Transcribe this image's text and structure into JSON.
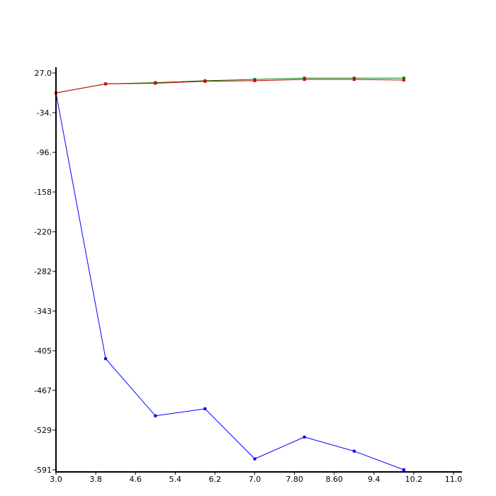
{
  "chart_data": {
    "type": "line",
    "title": "",
    "xlabel": "",
    "ylabel": "",
    "xlim": [
      3.0,
      11.0
    ],
    "ylim": [
      -591,
      27.0
    ],
    "grid": false,
    "legend": "none",
    "x_ticks": [
      "3.0",
      "3.8",
      "4.6",
      "5.4",
      "6.2",
      "7.0",
      "7.80",
      "8.60",
      "9.4",
      "10.2",
      "11.0"
    ],
    "y_ticks": [
      "27.0",
      "-34.",
      "-96.",
      "-158",
      "-220",
      "-282",
      "-343",
      "-405",
      "-467",
      "-529",
      "-591"
    ],
    "x": [
      3,
      4,
      5,
      6,
      7,
      8,
      9,
      10
    ],
    "series": [
      {
        "color": "#0000ff",
        "values": [
          -4,
          -418,
          -507,
          -496,
          -574,
          -540,
          -562,
          -591
        ]
      },
      {
        "color": "#008000",
        "values": [
          -4,
          10,
          12,
          15,
          17,
          19,
          19,
          19
        ]
      },
      {
        "color": "#cc0000",
        "values": [
          -4,
          10,
          11,
          14,
          15,
          17,
          17,
          16
        ]
      }
    ]
  }
}
